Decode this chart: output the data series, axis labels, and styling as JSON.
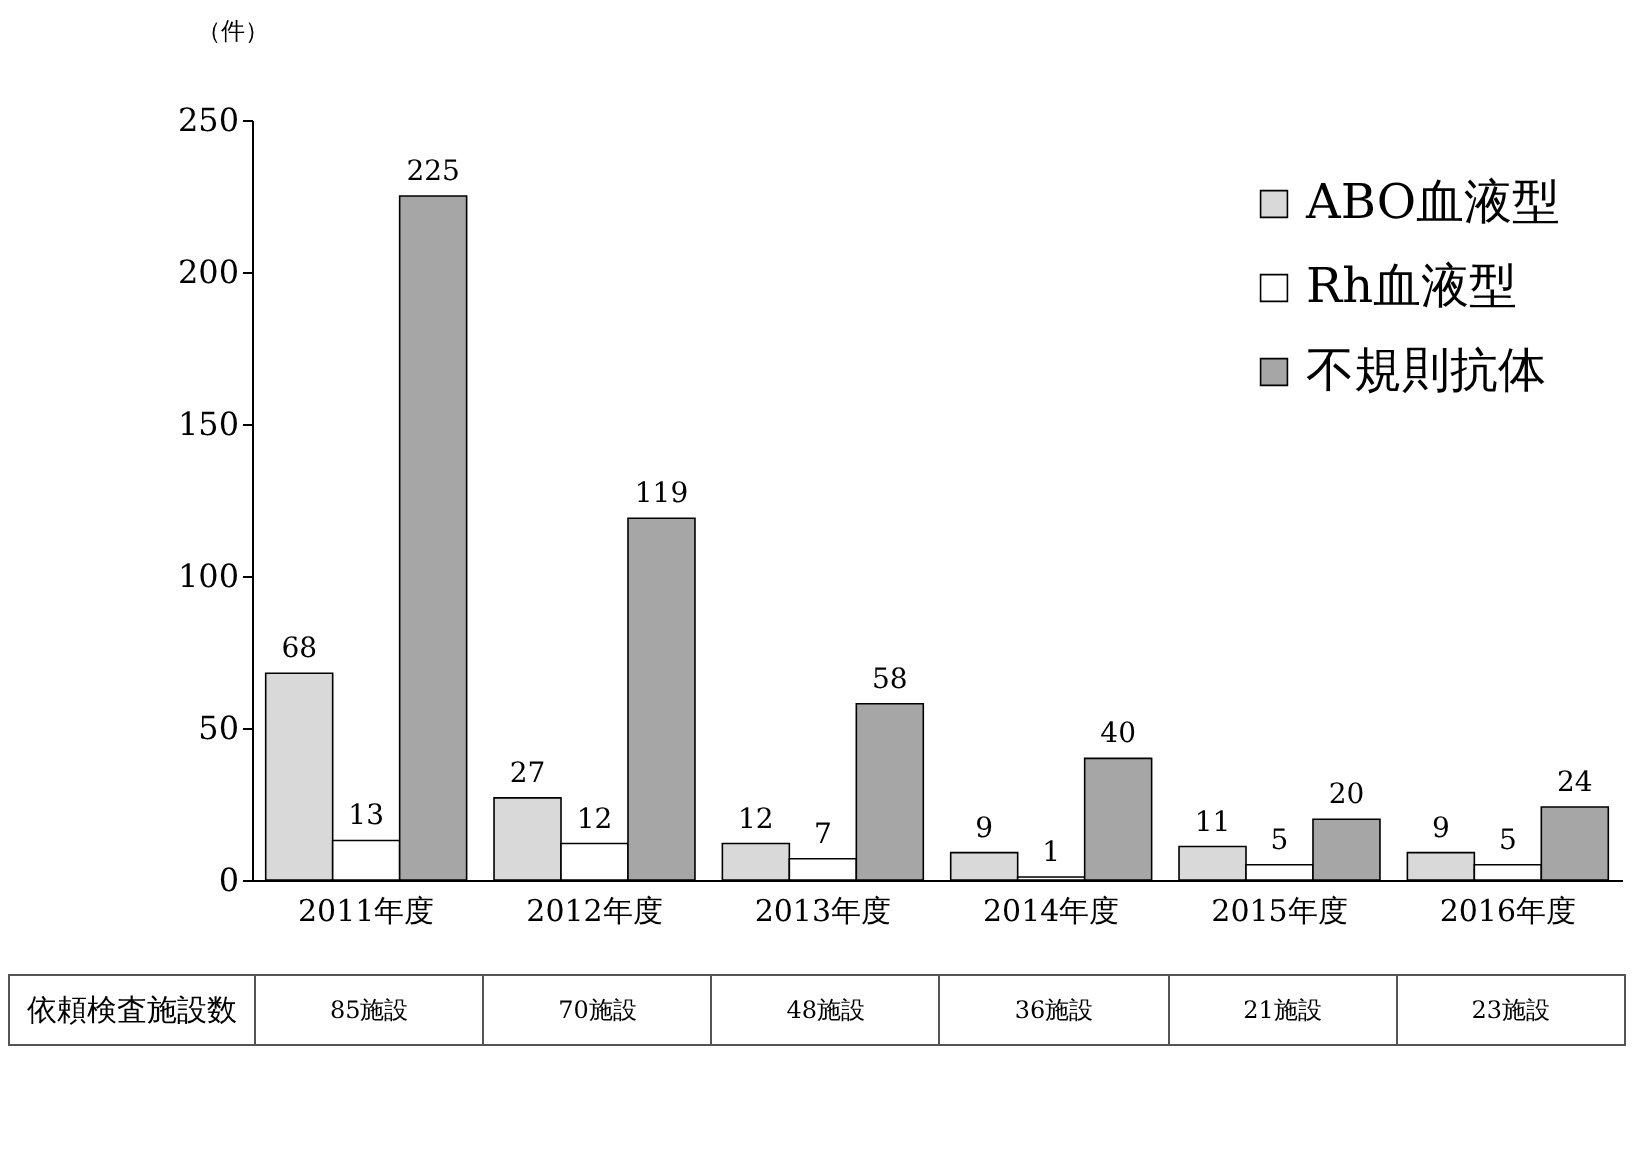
{
  "chart_data": {
    "type": "bar",
    "ylabel": "（件）",
    "categories": [
      "2011年度",
      "2012年度",
      "2013年度",
      "2014年度",
      "2015年度",
      "2016年度"
    ],
    "series": [
      {
        "name": "ABO血液型",
        "color": "#d9d9d9",
        "values": [
          68,
          27,
          12,
          9,
          11,
          9
        ]
      },
      {
        "name": "Rh血液型",
        "color": "#ffffff",
        "values": [
          13,
          12,
          7,
          1,
          5,
          5
        ]
      },
      {
        "name": "不規則抗体",
        "color": "#a6a6a6",
        "values": [
          225,
          119,
          58,
          40,
          20,
          24
        ]
      }
    ],
    "ylim": [
      0,
      250
    ],
    "yticks": [
      0,
      50,
      100,
      150,
      200,
      250
    ],
    "grid": false,
    "legend": "top right",
    "data_labels": true,
    "annotations": [
      "依頼検査施設数",
      "85施設",
      "70施設",
      "48施設",
      "36施設",
      "21施設",
      "23施設"
    ]
  }
}
